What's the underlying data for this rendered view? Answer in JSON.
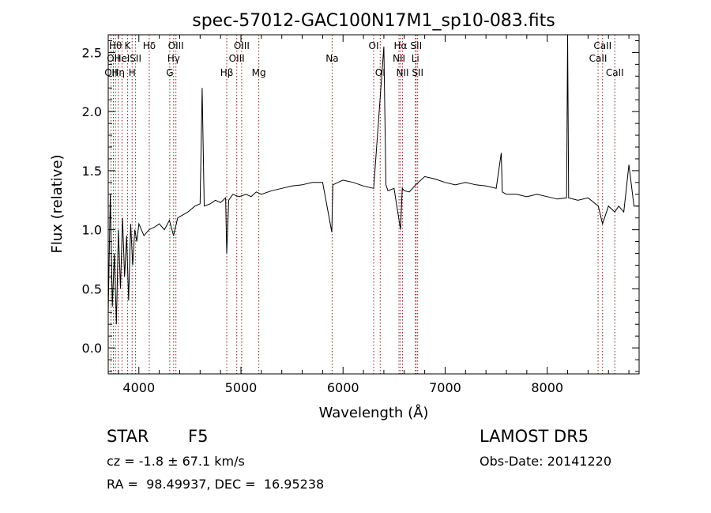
{
  "chart_data": {
    "type": "line",
    "title": "spec-57012-GAC100N17M1_sp10-083.fits",
    "xlabel": "Wavelength (Å)",
    "ylabel": "Flux (relative)",
    "xlim": [
      3700,
      8900
    ],
    "ylim": [
      -0.22,
      2.65
    ],
    "xticks": [
      4000,
      5000,
      6000,
      7000,
      8000
    ],
    "yticks": [
      0.0,
      0.5,
      1.0,
      1.5,
      2.0,
      2.5
    ],
    "ytick_labels": [
      "0.0",
      "0.5",
      "1.0",
      "1.5",
      "2.0",
      "2.5"
    ],
    "grid": false,
    "series": [
      {
        "values_note_free": true,
        "x": [
          3700,
          3720,
          3740,
          3760,
          3780,
          3800,
          3820,
          3840,
          3860,
          3880,
          3900,
          3920,
          3940,
          3960,
          3980,
          4000,
          4050,
          4100,
          4150,
          4200,
          4250,
          4300,
          4340,
          4380,
          4420,
          4480,
          4550,
          4600,
          4620,
          4640,
          4700,
          4750,
          4800,
          4850,
          4861,
          4880,
          4920,
          4980,
          5050,
          5100,
          5150,
          5200,
          5300,
          5400,
          5500,
          5600,
          5700,
          5800,
          5890,
          5900,
          5950,
          6000,
          6100,
          6200,
          6300,
          6400,
          6420,
          6440,
          6500,
          6563,
          6580,
          6600,
          6650,
          6700,
          6800,
          6900,
          7000,
          7100,
          7200,
          7300,
          7400,
          7500,
          7550,
          7560,
          7600,
          7700,
          7800,
          7900,
          8000,
          8100,
          8190,
          8200,
          8210,
          8300,
          8400,
          8500,
          8542,
          8600,
          8662,
          8700,
          8750,
          8800,
          8850,
          8900
        ],
        "y": [
          0.3,
          1.3,
          0.35,
          0.8,
          0.2,
          1.0,
          0.5,
          1.1,
          0.6,
          0.95,
          0.4,
          1.05,
          0.7,
          1.0,
          0.9,
          1.05,
          0.95,
          1.0,
          1.02,
          1.05,
          1.0,
          1.08,
          0.95,
          1.1,
          1.12,
          1.15,
          1.2,
          1.22,
          2.2,
          1.2,
          1.22,
          1.25,
          1.23,
          1.27,
          0.8,
          1.25,
          1.3,
          1.28,
          1.3,
          1.28,
          1.32,
          1.3,
          1.33,
          1.35,
          1.37,
          1.38,
          1.4,
          1.4,
          0.98,
          1.38,
          1.4,
          1.42,
          1.4,
          1.37,
          1.35,
          2.55,
          1.38,
          1.33,
          1.35,
          1.0,
          1.35,
          1.33,
          1.32,
          1.37,
          1.45,
          1.43,
          1.4,
          1.38,
          1.4,
          1.38,
          1.37,
          1.35,
          1.65,
          1.32,
          1.3,
          1.3,
          1.28,
          1.3,
          1.28,
          1.26,
          1.27,
          2.65,
          1.27,
          1.25,
          1.27,
          1.2,
          1.05,
          1.2,
          1.15,
          1.2,
          1.15,
          1.55,
          1.2,
          1.2
        ]
      }
    ],
    "lines": [
      {
        "w": 3727,
        "label": "OII",
        "row": 2
      },
      {
        "w": 3750,
        "label": "OII",
        "row": 1
      },
      {
        "w": 3771,
        "label": "Hθ",
        "row": 0
      },
      {
        "w": 3798,
        "label": "Hη",
        "row": 2
      },
      {
        "w": 3835,
        "label": "HeI",
        "row": 1
      },
      {
        "w": 3889,
        "label": "K",
        "row": 0
      },
      {
        "w": 3934,
        "label": "H",
        "row": 2
      },
      {
        "w": 3968,
        "label": "SII",
        "row": 1
      },
      {
        "w": 4102,
        "label": "Hδ",
        "row": 0
      },
      {
        "w": 4303,
        "label": "G",
        "row": 2
      },
      {
        "w": 4341,
        "label": "Hγ",
        "row": 1
      },
      {
        "w": 4363,
        "label": "OIII",
        "row": 0
      },
      {
        "w": 4861,
        "label": "Hβ",
        "row": 2
      },
      {
        "w": 4959,
        "label": "OIII",
        "row": 1
      },
      {
        "w": 5007,
        "label": "OIII",
        "row": 0
      },
      {
        "w": 5175,
        "label": "Mg",
        "row": 2
      },
      {
        "w": 5893,
        "label": "Na",
        "row": 1
      },
      {
        "w": 6300,
        "label": "OI",
        "row": 0
      },
      {
        "w": 6364,
        "label": "OI",
        "row": 2
      },
      {
        "w": 6548,
        "label": "NII",
        "row": 1
      },
      {
        "w": 6563,
        "label": "Hα",
        "row": 0
      },
      {
        "w": 6583,
        "label": "NII",
        "row": 2
      },
      {
        "w": 6708,
        "label": "Li",
        "row": 1
      },
      {
        "w": 6716,
        "label": "SII",
        "row": 0
      },
      {
        "w": 6731,
        "label": "SII",
        "row": 2
      },
      {
        "w": 8498,
        "label": "CaII",
        "row": 1
      },
      {
        "w": 8542,
        "label": "CaII",
        "row": 0
      },
      {
        "w": 8662,
        "label": "CaII",
        "row": 2
      }
    ]
  },
  "info": {
    "class_label": "STAR",
    "subclass": "F5",
    "survey": "LAMOST DR5",
    "cz_text": "cz = -1.8 ± 67.1 km/s",
    "obs_date_text": "Obs-Date: 20141220",
    "radec_text": "RA =  98.49937, DEC =  16.95238"
  },
  "colors": {
    "spectrum": "#000000",
    "line_markers": "#8b1a1a",
    "axes": "#000000"
  }
}
